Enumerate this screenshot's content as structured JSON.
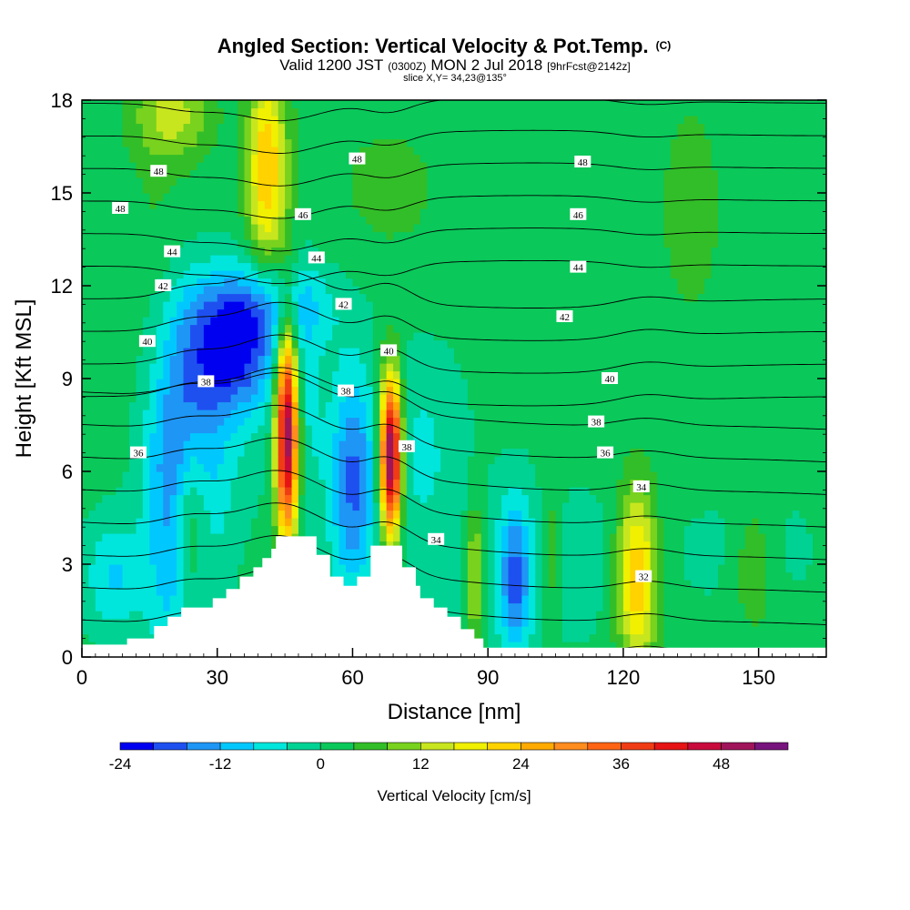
{
  "title": {
    "main": "Angled Section: Vertical Velocity & Pot.Temp.",
    "main_suffix": "(C)",
    "valid_prefix": "Valid 1200 JST",
    "valid_zulu": "(0300Z)",
    "valid_date": "MON 2 Jul 2018",
    "forecast": "[9hrFcst@2142z]",
    "slice": "slice X,Y= 34,23@135°"
  },
  "chart_data": {
    "type": "heatmap",
    "title": "Angled Section: Vertical Velocity & Pot.Temp.",
    "xlabel": "Distance [nm]",
    "ylabel": "Height [Kft MSL]",
    "xlim": [
      0,
      165
    ],
    "ylim": [
      0,
      18
    ],
    "x_ticks": [
      "0",
      "30",
      "60",
      "90",
      "120",
      "150"
    ],
    "y_ticks": [
      "0",
      "3",
      "6",
      "9",
      "12",
      "15",
      "18"
    ],
    "colorbar": {
      "label": "Vertical Velocity [cm/s]",
      "tick_labels": [
        "-24",
        "-12",
        "0",
        "12",
        "24",
        "36",
        "48"
      ],
      "levels": [
        -24,
        -20,
        -16,
        -12,
        -8,
        -4,
        0,
        4,
        8,
        12,
        16,
        20,
        24,
        28,
        32,
        36,
        40,
        44,
        48,
        52,
        56
      ],
      "colors": [
        "#0000f0",
        "#1e50f0",
        "#1e96f5",
        "#00c8ff",
        "#00e6dc",
        "#00d294",
        "#0ac85a",
        "#32be28",
        "#78d21e",
        "#c8e61e",
        "#f0f000",
        "#ffd200",
        "#ffaa00",
        "#ff8c1e",
        "#ff6414",
        "#f03c14",
        "#e61414",
        "#c80a3c",
        "#a0145a",
        "#78147d"
      ]
    },
    "vertical_velocity_features": [
      {
        "x": 22,
        "y": 5.3,
        "sx": 5.0,
        "sy": 4.2,
        "w": -20
      },
      {
        "x": 34,
        "y": 9.8,
        "sx": 6.5,
        "sy": 1.4,
        "w": -20
      },
      {
        "x": 40,
        "y": 11.4,
        "sx": 12.0,
        "sy": 1.1,
        "w": -12
      },
      {
        "x": 27,
        "y": 7.0,
        "sx": 7.0,
        "sy": 2.5,
        "w": -7
      },
      {
        "x": 48,
        "y": 8.0,
        "sx": 4.0,
        "sy": 3.0,
        "w": -8
      },
      {
        "x": 60,
        "y": 5.7,
        "sx": 3.5,
        "sy": 2.6,
        "w": -18
      },
      {
        "x": 75,
        "y": 7.0,
        "sx": 7.0,
        "sy": 2.5,
        "w": -6
      },
      {
        "x": 96,
        "y": 2.5,
        "sx": 2.5,
        "sy": 1.8,
        "w": -16
      },
      {
        "x": 7,
        "y": 2.6,
        "sx": 4.5,
        "sy": 1.3,
        "w": -10
      },
      {
        "x": 100,
        "y": 3.0,
        "sx": 20.0,
        "sy": 2.0,
        "w": -4
      },
      {
        "x": 150,
        "y": 3.5,
        "sx": 10.0,
        "sy": 1.5,
        "w": -3
      },
      {
        "x": 45.5,
        "y": 7.3,
        "sx": 1.8,
        "sy": 2.5,
        "w": 56
      },
      {
        "x": 68.5,
        "y": 6.5,
        "sx": 1.7,
        "sy": 1.8,
        "w": 56
      },
      {
        "x": 41,
        "y": 15.8,
        "sx": 3.0,
        "sy": 2.3,
        "w": 22
      },
      {
        "x": 24,
        "y": 4.5,
        "sx": 3.0,
        "sy": 2.3,
        "w": 20
      },
      {
        "x": 123,
        "y": 2.6,
        "sx": 3.2,
        "sy": 2.0,
        "w": 24
      },
      {
        "x": 87,
        "y": 2.7,
        "sx": 1.5,
        "sy": 1.6,
        "w": 15
      },
      {
        "x": 104,
        "y": 3.3,
        "sx": 1.8,
        "sy": 1.5,
        "w": 8
      },
      {
        "x": 149,
        "y": 3.0,
        "sx": 3.5,
        "sy": 1.5,
        "w": 8
      },
      {
        "x": 20,
        "y": 17.5,
        "sx": 6.0,
        "sy": 1.0,
        "w": 12
      },
      {
        "x": 18,
        "y": 13.0,
        "sx": 6.0,
        "sy": 3.0,
        "w": 4
      },
      {
        "x": 68,
        "y": 15.0,
        "sx": 15.0,
        "sy": 3.0,
        "w": 3
      },
      {
        "x": 135,
        "y": 14.5,
        "sx": 6.0,
        "sy": 3.0,
        "w": 4
      }
    ],
    "theta_contours": {
      "levels": [
        32,
        33,
        34,
        35,
        36,
        37,
        38,
        39,
        40,
        41,
        42,
        43,
        44,
        45,
        46,
        47,
        48,
        49
      ],
      "labels": [
        {
          "text": "48",
          "x": 17,
          "y": 15.7
        },
        {
          "text": "48",
          "x": 8.5,
          "y": 14.5
        },
        {
          "text": "48",
          "x": 61,
          "y": 16.1
        },
        {
          "text": "48",
          "x": 111,
          "y": 16.0
        },
        {
          "text": "46",
          "x": 49,
          "y": 14.3
        },
        {
          "text": "46",
          "x": 110,
          "y": 14.3
        },
        {
          "text": "44",
          "x": 20,
          "y": 13.1
        },
        {
          "text": "44",
          "x": 52,
          "y": 12.9
        },
        {
          "text": "44",
          "x": 110,
          "y": 12.6
        },
        {
          "text": "42",
          "x": 18,
          "y": 12.0
        },
        {
          "text": "42",
          "x": 58,
          "y": 11.4
        },
        {
          "text": "42",
          "x": 107,
          "y": 11.0
        },
        {
          "text": "40",
          "x": 14.5,
          "y": 10.2
        },
        {
          "text": "40",
          "x": 68,
          "y": 9.9
        },
        {
          "text": "40",
          "x": 117,
          "y": 9.0
        },
        {
          "text": "38",
          "x": 27.5,
          "y": 8.9
        },
        {
          "text": "38",
          "x": 58.5,
          "y": 8.6
        },
        {
          "text": "38",
          "x": 72,
          "y": 6.8
        },
        {
          "text": "38",
          "x": 114,
          "y": 7.6
        },
        {
          "text": "36",
          "x": 12.5,
          "y": 6.6
        },
        {
          "text": "36",
          "x": 116,
          "y": 6.6
        },
        {
          "text": "34",
          "x": 78.5,
          "y": 3.8
        },
        {
          "text": "34",
          "x": 124,
          "y": 5.5
        },
        {
          "text": "32",
          "x": 124.5,
          "y": 2.6
        }
      ]
    },
    "terrain": [
      [
        0,
        0.4
      ],
      [
        10,
        0.4
      ],
      [
        10,
        0.6
      ],
      [
        16,
        0.6
      ],
      [
        16,
        1.0
      ],
      [
        19,
        1.0
      ],
      [
        19,
        1.3
      ],
      [
        22,
        1.3
      ],
      [
        22,
        1.6
      ],
      [
        29,
        1.6
      ],
      [
        29,
        1.9
      ],
      [
        32,
        1.9
      ],
      [
        32,
        2.2
      ],
      [
        35,
        2.2
      ],
      [
        35,
        2.6
      ],
      [
        38,
        2.6
      ],
      [
        38,
        2.9
      ],
      [
        40,
        2.9
      ],
      [
        40,
        3.2
      ],
      [
        42,
        3.2
      ],
      [
        42,
        3.5
      ],
      [
        43,
        3.5
      ],
      [
        43,
        3.9
      ],
      [
        52,
        3.9
      ],
      [
        52,
        3.3
      ],
      [
        55,
        3.3
      ],
      [
        55,
        2.6
      ],
      [
        58,
        2.6
      ],
      [
        58,
        2.3
      ],
      [
        61,
        2.3
      ],
      [
        61,
        2.6
      ],
      [
        64,
        2.6
      ],
      [
        64,
        3.6
      ],
      [
        71,
        3.6
      ],
      [
        71,
        2.9
      ],
      [
        74,
        2.9
      ],
      [
        74,
        2.3
      ],
      [
        75,
        2.3
      ],
      [
        75,
        1.9
      ],
      [
        78,
        1.9
      ],
      [
        78,
        1.6
      ],
      [
        81,
        1.6
      ],
      [
        81,
        1.3
      ],
      [
        84,
        1.3
      ],
      [
        84,
        0.9
      ],
      [
        87,
        0.9
      ],
      [
        87,
        0.6
      ],
      [
        89,
        0.6
      ],
      [
        89,
        0.3
      ],
      [
        165,
        0.3
      ]
    ]
  }
}
